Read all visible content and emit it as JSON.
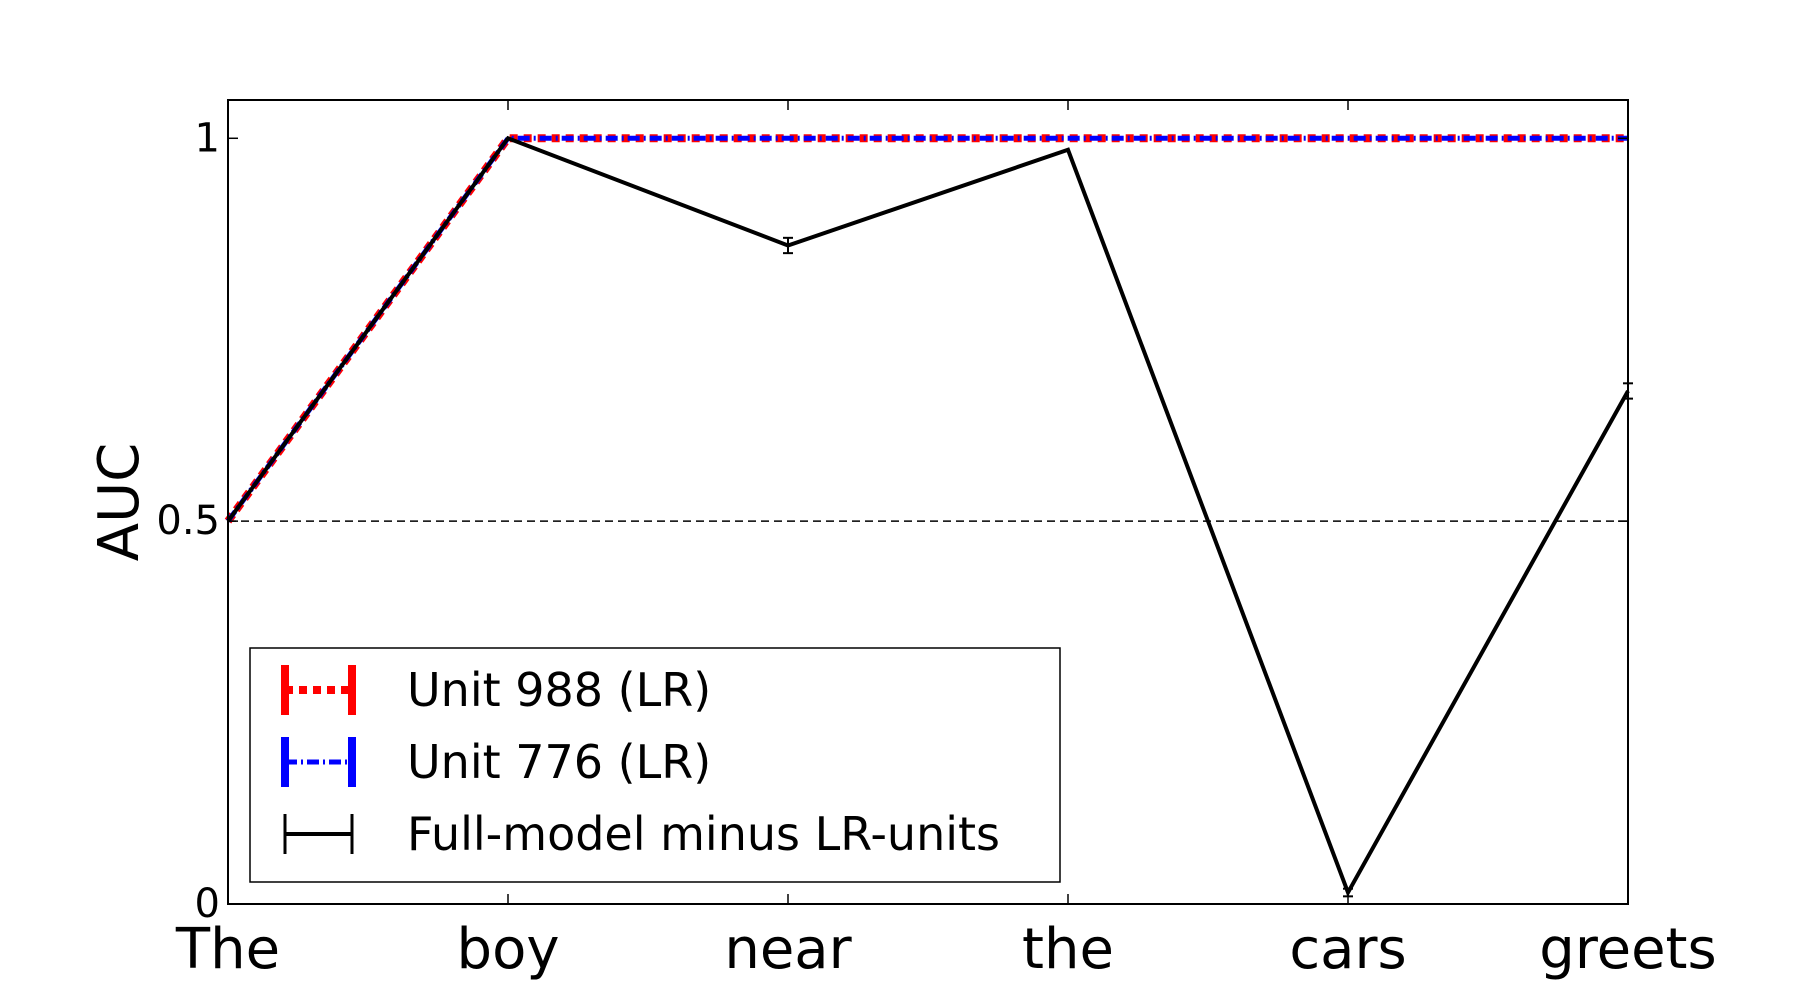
{
  "chart_data": {
    "type": "line",
    "title": "",
    "xlabel": "",
    "ylabel": "AUC",
    "categories": [
      "The",
      "boy",
      "near",
      "the",
      "cars",
      "greets"
    ],
    "ylim": [
      0,
      1.05
    ],
    "yticks": [
      {
        "value": 0,
        "label": "0"
      },
      {
        "value": 0.5,
        "label": "0.5"
      },
      {
        "value": 1,
        "label": "1"
      }
    ],
    "reference_line": {
      "value": 0.5,
      "style": "dashed",
      "color": "#000000"
    },
    "grid": false,
    "legend_position": "lower-left",
    "series": [
      {
        "name": "Unit 988 (LR)",
        "color": "#ff0000",
        "style": "dotted",
        "values": [
          0.5,
          1,
          1,
          1,
          1,
          1
        ],
        "errors": [
          0,
          0,
          0,
          0,
          0,
          0
        ]
      },
      {
        "name": "Unit 776 (LR)",
        "color": "#0000ff",
        "style": "dashdot",
        "values": [
          0.5,
          1,
          1,
          1,
          1,
          1
        ],
        "errors": [
          0,
          0,
          0,
          0,
          0,
          0
        ]
      },
      {
        "name": "Full-model minus LR-units",
        "color": "#000000",
        "style": "solid",
        "values": [
          0.5,
          1,
          0.86,
          0.985,
          0.015,
          0.67
        ],
        "errors": [
          0,
          0,
          0.01,
          0,
          0.005,
          0.01
        ]
      }
    ]
  }
}
